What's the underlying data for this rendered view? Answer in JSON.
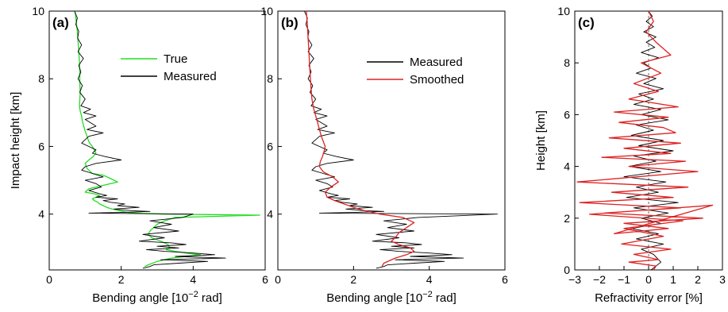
{
  "chart_data": [
    {
      "type": "line",
      "panel_label": "(a)",
      "xlabel_main": "Bending angle [10",
      "xlabel_sup": "−2",
      "xlabel_end": " rad]",
      "ylabel": "Impact height [km]",
      "xlim": [
        0,
        6
      ],
      "ylim": [
        2.35,
        10
      ],
      "xticks": [
        "0",
        "2",
        "4",
        "6"
      ],
      "xtick_values": [
        0,
        2,
        4,
        6
      ],
      "yticks": [
        "4",
        "6",
        "8",
        "10"
      ],
      "ytick_values": [
        4,
        6,
        8,
        10
      ],
      "legend": "top-right",
      "series": [
        {
          "name": "True",
          "color": "#22dd22",
          "x": [
            0.72,
            0.75,
            0.78,
            0.8,
            0.82,
            0.84,
            0.85,
            0.85,
            0.86,
            0.85,
            0.84,
            0.86,
            0.9,
            0.92,
            0.96,
            1.0,
            1.05,
            1.08,
            1.12,
            1.2,
            1.25,
            1.3,
            1.22,
            1.1,
            1.0,
            1.05,
            1.2,
            1.5,
            1.7,
            1.9,
            1.5,
            1.1,
            1.0,
            1.25,
            1.4,
            1.3,
            1.2,
            1.25,
            1.35,
            1.4,
            1.5,
            1.6,
            1.75,
            1.95,
            2.2,
            2.6,
            3.2,
            4.1,
            5.85,
            3.5,
            3.2,
            3.0,
            2.9,
            2.8,
            2.75,
            2.85,
            3.1,
            3.3,
            3.35,
            3.25,
            3.5,
            3.8,
            4.2,
            3.4,
            3.0,
            2.75,
            2.65
          ],
          "y": [
            10.0,
            9.7,
            9.4,
            9.1,
            8.8,
            8.5,
            8.2,
            7.9,
            7.6,
            7.35,
            7.2,
            7.05,
            6.9,
            6.75,
            6.6,
            6.45,
            6.3,
            6.2,
            6.1,
            6.0,
            5.9,
            5.8,
            5.7,
            5.6,
            5.5,
            5.35,
            5.2,
            5.15,
            5.05,
            4.95,
            4.85,
            4.75,
            4.65,
            4.6,
            4.55,
            4.5,
            4.45,
            4.4,
            4.35,
            4.3,
            4.25,
            4.2,
            4.15,
            4.1,
            4.05,
            4.02,
            4.0,
            3.99,
            3.97,
            3.9,
            3.8,
            3.7,
            3.6,
            3.5,
            3.4,
            3.3,
            3.2,
            3.1,
            3.0,
            2.95,
            2.9,
            2.85,
            2.8,
            2.7,
            2.6,
            2.5,
            2.45
          ]
        },
        {
          "name": "Measured",
          "color": "#000000",
          "x": [
            0.7,
            0.78,
            0.74,
            0.82,
            0.79,
            0.9,
            0.8,
            0.95,
            0.82,
            0.88,
            0.8,
            0.92,
            0.85,
            1.0,
            0.88,
            1.15,
            0.95,
            1.3,
            1.0,
            1.15,
            1.3,
            1.05,
            1.5,
            1.1,
            1.0,
            0.9,
            1.1,
            1.3,
            1.2,
            1.55,
            2.0,
            1.3,
            1.0,
            0.9,
            1.2,
            1.5,
            1.0,
            1.3,
            1.45,
            1.1,
            1.4,
            1.6,
            1.3,
            1.9,
            1.5,
            1.7,
            2.1,
            1.9,
            2.5,
            1.8,
            2.3,
            2.8,
            2.0,
            1.1,
            4.0,
            3.7,
            2.8,
            3.4,
            2.9,
            3.6,
            2.6,
            3.2,
            2.5,
            3.4,
            3.8,
            3.0,
            3.6,
            2.7,
            3.2,
            4.0,
            4.6,
            3.5,
            4.9,
            3.1,
            4.4,
            3.6,
            2.9,
            2.8,
            2.6
          ],
          "y": [
            10.0,
            9.8,
            9.6,
            9.4,
            9.2,
            9.0,
            8.8,
            8.6,
            8.4,
            8.2,
            8.0,
            7.8,
            7.6,
            7.4,
            7.2,
            7.1,
            7.0,
            6.9,
            6.8,
            6.7,
            6.6,
            6.5,
            6.4,
            6.3,
            6.2,
            6.1,
            6.0,
            5.9,
            5.8,
            5.7,
            5.6,
            5.5,
            5.4,
            5.3,
            5.2,
            5.1,
            5.0,
            4.9,
            4.8,
            4.7,
            4.6,
            4.55,
            4.5,
            4.45,
            4.4,
            4.35,
            4.3,
            4.25,
            4.2,
            4.15,
            4.1,
            4.08,
            4.05,
            4.03,
            4.0,
            3.9,
            3.8,
            3.7,
            3.6,
            3.5,
            3.4,
            3.3,
            3.2,
            3.15,
            3.1,
            3.05,
            3.0,
            2.95,
            2.9,
            2.85,
            2.8,
            2.75,
            2.7,
            2.65,
            2.6,
            2.55,
            2.5,
            2.45,
            2.4
          ]
        }
      ]
    },
    {
      "type": "line",
      "panel_label": "(b)",
      "xlabel_main": "Bending angle [10",
      "xlabel_sup": "−2",
      "xlabel_end": " rad]",
      "ylabel": "",
      "xlim": [
        0,
        6
      ],
      "ylim": [
        2.35,
        10
      ],
      "xticks": [
        "0",
        "2",
        "4",
        "6"
      ],
      "xtick_values": [
        0,
        2,
        4,
        6
      ],
      "yticks": [
        "4",
        "6",
        "8",
        "10"
      ],
      "ytick_values": [
        4,
        6,
        8,
        10
      ],
      "legend": "top-right",
      "series": [
        {
          "name": "Measured",
          "color": "#000000",
          "x": [
            0.7,
            0.78,
            0.74,
            0.82,
            0.79,
            0.9,
            0.8,
            0.95,
            0.82,
            0.88,
            0.8,
            0.92,
            0.85,
            1.0,
            0.88,
            1.15,
            0.95,
            1.3,
            1.0,
            1.15,
            1.3,
            1.05,
            1.5,
            1.1,
            1.0,
            0.9,
            1.1,
            1.3,
            1.2,
            1.55,
            2.0,
            1.3,
            1.0,
            0.9,
            1.2,
            1.5,
            1.0,
            1.3,
            1.45,
            1.1,
            1.4,
            1.6,
            1.3,
            1.9,
            1.5,
            1.7,
            2.1,
            1.9,
            2.5,
            1.8,
            2.3,
            2.8,
            2.0,
            1.1,
            5.8,
            3.7,
            2.8,
            3.4,
            2.9,
            3.6,
            2.6,
            3.2,
            2.5,
            3.4,
            3.8,
            3.0,
            3.6,
            2.7,
            3.2,
            4.0,
            4.6,
            3.5,
            4.9,
            3.1,
            4.4,
            3.6,
            2.9,
            2.8,
            2.6
          ],
          "y": [
            10.0,
            9.8,
            9.6,
            9.4,
            9.2,
            9.0,
            8.8,
            8.6,
            8.4,
            8.2,
            8.0,
            7.8,
            7.6,
            7.4,
            7.2,
            7.1,
            7.0,
            6.9,
            6.8,
            6.7,
            6.6,
            6.5,
            6.4,
            6.3,
            6.2,
            6.1,
            6.0,
            5.9,
            5.8,
            5.7,
            5.6,
            5.5,
            5.4,
            5.3,
            5.2,
            5.1,
            5.0,
            4.9,
            4.8,
            4.7,
            4.6,
            4.55,
            4.5,
            4.45,
            4.4,
            4.35,
            4.3,
            4.25,
            4.2,
            4.15,
            4.1,
            4.08,
            4.05,
            4.03,
            4.0,
            3.9,
            3.8,
            3.7,
            3.6,
            3.5,
            3.4,
            3.3,
            3.2,
            3.15,
            3.1,
            3.05,
            3.0,
            2.95,
            2.9,
            2.85,
            2.8,
            2.75,
            2.7,
            2.65,
            2.6,
            2.55,
            2.5,
            2.45,
            2.4
          ]
        },
        {
          "name": "Smoothed",
          "color": "#dd2222",
          "x": [
            0.75,
            0.78,
            0.8,
            0.82,
            0.84,
            0.86,
            0.88,
            0.9,
            0.95,
            1.0,
            1.05,
            1.1,
            1.15,
            1.2,
            1.25,
            1.22,
            1.18,
            1.12,
            1.1,
            1.2,
            1.45,
            1.6,
            1.4,
            1.25,
            1.3,
            1.5,
            1.75,
            2.0,
            2.3,
            2.7,
            3.3,
            3.6,
            3.4,
            3.2,
            3.1,
            3.0,
            3.2,
            3.5,
            3.6,
            3.4,
            3.1,
            2.8,
            2.75
          ],
          "y": [
            10.0,
            9.6,
            9.2,
            8.8,
            8.4,
            8.0,
            7.7,
            7.4,
            7.1,
            6.9,
            6.7,
            6.5,
            6.3,
            6.15,
            6.0,
            5.85,
            5.7,
            5.55,
            5.4,
            5.25,
            5.1,
            4.95,
            4.8,
            4.65,
            4.5,
            4.4,
            4.3,
            4.2,
            4.1,
            4.0,
            3.9,
            3.75,
            3.6,
            3.45,
            3.3,
            3.2,
            3.1,
            3.0,
            2.9,
            2.8,
            2.7,
            2.55,
            2.45
          ]
        }
      ]
    },
    {
      "type": "line",
      "panel_label": "(c)",
      "xlabel_main": "Refractivity error [%]",
      "xlabel_sup": "",
      "xlabel_end": "",
      "ylabel": "Height [km]",
      "xlim": [
        -3,
        3
      ],
      "ylim": [
        0,
        10
      ],
      "xticks": [
        "−3",
        "−2",
        "−1",
        "0",
        "1",
        "2",
        "3"
      ],
      "xtick_values": [
        -3,
        -2,
        -1,
        0,
        1,
        2,
        3
      ],
      "yticks": [
        "0",
        "2",
        "4",
        "6",
        "8",
        "10"
      ],
      "ytick_values": [
        0,
        2,
        4,
        6,
        8,
        10
      ],
      "zero_line": true,
      "series": [
        {
          "name": "",
          "color": "#000000",
          "x": [
            0.0,
            0.15,
            -0.1,
            0.2,
            -0.2,
            0.3,
            -0.1,
            0.25,
            -0.3,
            0.4,
            -0.2,
            0.1,
            -0.5,
            0.3,
            -0.2,
            0.6,
            -0.4,
            0.2,
            -0.6,
            0.5,
            -0.3,
            0.8,
            -0.5,
            0.2,
            -0.7,
            0.6,
            -0.4,
            1.0,
            -0.6,
            0.3,
            -0.8,
            0.5,
            -1.0,
            0.7,
            -0.5,
            0.4,
            -0.9,
            1.2,
            -0.6,
            0.8,
            -0.3,
            0.5,
            -0.7,
            0.4,
            -0.5,
            0.6,
            -0.3,
            0.2,
            0.5,
            0.1
          ],
          "y": [
            10.0,
            9.8,
            9.6,
            9.4,
            9.2,
            9.0,
            8.8,
            8.6,
            8.4,
            8.2,
            8.0,
            7.8,
            7.6,
            7.4,
            7.2,
            7.0,
            6.8,
            6.6,
            6.4,
            6.2,
            6.0,
            5.8,
            5.6,
            5.4,
            5.2,
            5.0,
            4.8,
            4.6,
            4.4,
            4.2,
            4.0,
            3.8,
            3.6,
            3.4,
            3.2,
            3.0,
            2.8,
            2.6,
            2.4,
            2.2,
            2.0,
            1.8,
            1.6,
            1.4,
            1.2,
            1.0,
            0.8,
            0.6,
            0.3,
            0.0
          ]
        },
        {
          "name": "",
          "color": "#dd2222",
          "x": [
            0.0,
            0.2,
            -0.1,
            0.3,
            0.9,
            -0.3,
            0.5,
            -0.6,
            0.4,
            -0.8,
            1.2,
            -1.4,
            0.8,
            -1.2,
            0.6,
            1.1,
            -1.6,
            1.3,
            -1.0,
            0.9,
            -1.9,
            1.5,
            -0.8,
            2.0,
            -2.9,
            1.6,
            -1.5,
            1.0,
            -2.8,
            1.3,
            -1.8,
            2.2,
            -1.0,
            0.8,
            -1.4,
            2.6,
            -2.4,
            1.4,
            -1.0,
            0.6,
            -1.1,
            0.9,
            -0.6,
            0.4,
            -0.8,
            0.3,
            0.2
          ],
          "y": [
            10.0,
            9.6,
            9.2,
            8.8,
            8.3,
            8.0,
            7.6,
            7.2,
            6.9,
            6.6,
            6.3,
            6.1,
            5.9,
            5.7,
            5.5,
            5.3,
            5.1,
            4.9,
            4.7,
            4.5,
            4.35,
            4.2,
            4.0,
            3.8,
            3.4,
            3.2,
            3.0,
            2.8,
            2.6,
            2.4,
            2.2,
            2.0,
            1.8,
            1.6,
            1.4,
            2.5,
            2.15,
            1.9,
            1.6,
            1.3,
            1.0,
            0.8,
            0.6,
            0.4,
            0.3,
            0.15,
            0.0
          ]
        }
      ]
    }
  ]
}
